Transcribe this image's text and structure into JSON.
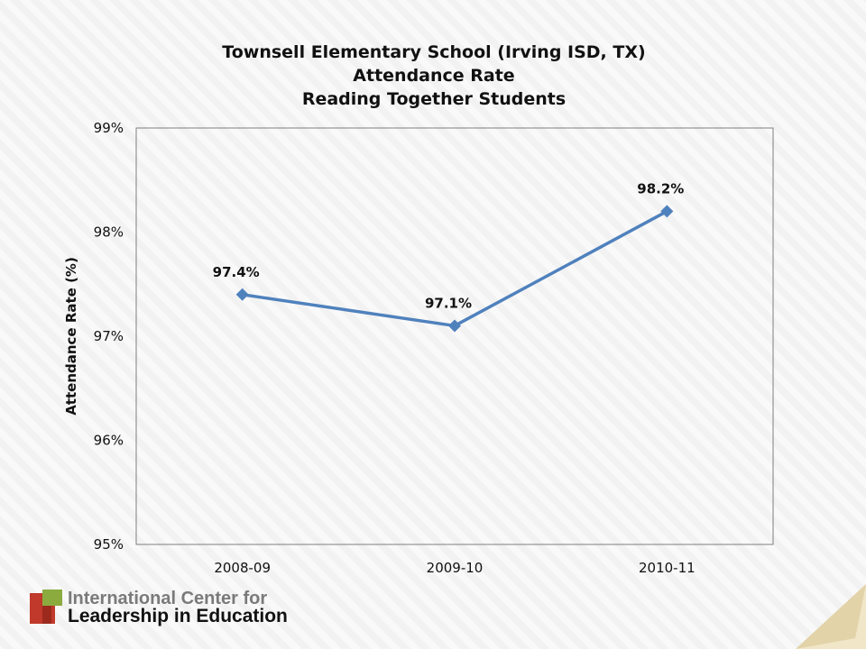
{
  "slide": {
    "org_line1": "International Center for",
    "org_line2": "Leadership in Education",
    "logo_colors": {
      "red": "#c0392b",
      "green": "#8bab3f",
      "dark_red": "#9b2a1d"
    }
  },
  "chart_data": {
    "type": "line",
    "title": [
      "Townsell Elementary School (Irving ISD, TX)",
      "Attendance Rate",
      "Reading Together Students"
    ],
    "xlabel": "",
    "ylabel": "Attendance Rate (%)",
    "categories": [
      "2008-09",
      "2009-10",
      "2010-11"
    ],
    "series": [
      {
        "values": [
          97.4,
          97.1,
          98.2
        ],
        "labels": [
          "97.4%",
          "97.1%",
          "98.2%"
        ],
        "color": "#4f81bd"
      }
    ],
    "ylim": [
      95,
      99
    ],
    "yticks": [
      95,
      96,
      97,
      98,
      99
    ],
    "ytick_labels": [
      "95%",
      "96%",
      "97%",
      "98%",
      "99%"
    ],
    "grid": false,
    "legend": "none"
  }
}
